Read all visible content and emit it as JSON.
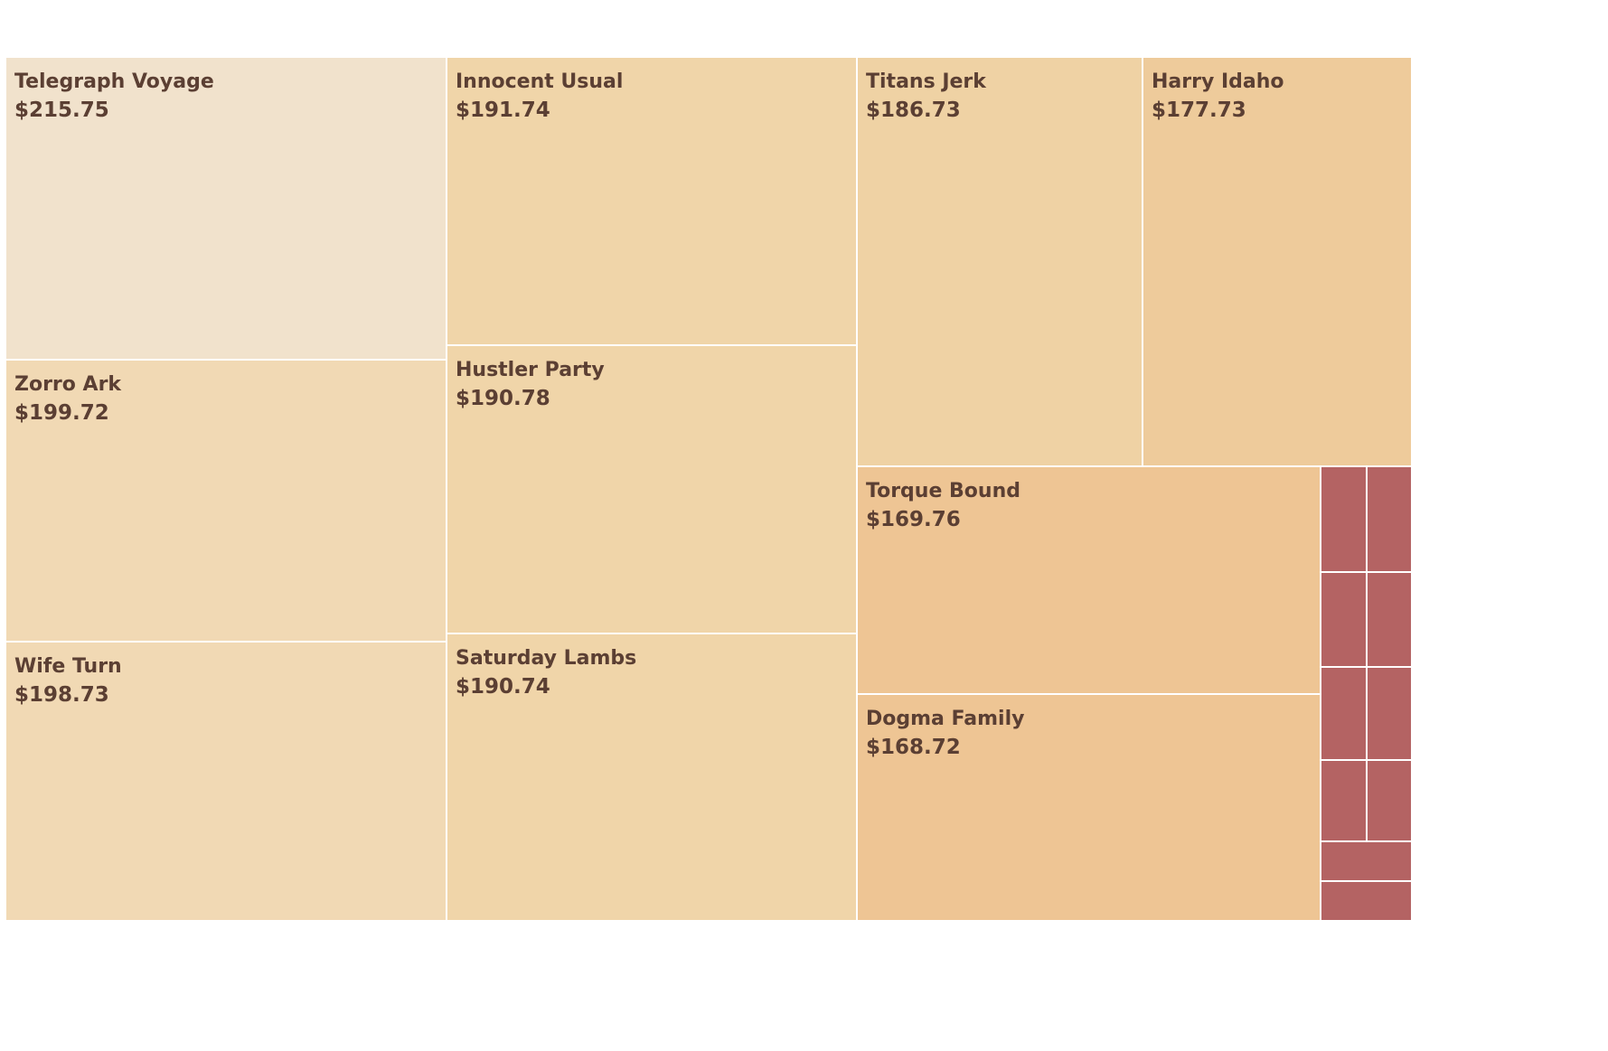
{
  "chart_data": {
    "type": "treemap",
    "title": "",
    "value_format": "currency",
    "items": [
      {
        "label": "Telegraph Voyage",
        "value_text": "$215.75",
        "value": 215.75,
        "color": "#f1e2cc"
      },
      {
        "label": "Zorro Ark",
        "value_text": "$199.72",
        "value": 199.72,
        "color": "#f1d9b4"
      },
      {
        "label": "Wife Turn",
        "value_text": "$198.73",
        "value": 198.73,
        "color": "#f1d9b4"
      },
      {
        "label": "Innocent Usual",
        "value_text": "$191.74",
        "value": 191.74,
        "color": "#f0d5a9"
      },
      {
        "label": "Hustler Party",
        "value_text": "$190.78",
        "value": 190.78,
        "color": "#f0d5a9"
      },
      {
        "label": "Saturday Lambs",
        "value_text": "$190.74",
        "value": 190.74,
        "color": "#f0d5a9"
      },
      {
        "label": "Titans Jerk",
        "value_text": "$186.73",
        "value": 186.73,
        "color": "#efd2a4"
      },
      {
        "label": "Harry Idaho",
        "value_text": "$177.73",
        "value": 177.73,
        "color": "#eecb9b"
      },
      {
        "label": "Torque Bound",
        "value_text": "$169.76",
        "value": 169.76,
        "color": "#eec594"
      },
      {
        "label": "Dogma Family",
        "value_text": "$168.72",
        "value": 168.72,
        "color": "#eec594"
      },
      {
        "label": "",
        "value_text": "",
        "value": 21.1,
        "color": "#b46363"
      },
      {
        "label": "",
        "value_text": "",
        "value": 21.1,
        "color": "#b46363"
      },
      {
        "label": "",
        "value_text": "",
        "value": 18.9,
        "color": "#b46363"
      },
      {
        "label": "",
        "value_text": "",
        "value": 18.9,
        "color": "#b46363"
      },
      {
        "label": "",
        "value_text": "",
        "value": 18.5,
        "color": "#b46363"
      },
      {
        "label": "",
        "value_text": "",
        "value": 18.5,
        "color": "#b46363"
      },
      {
        "label": "",
        "value_text": "",
        "value": 16.1,
        "color": "#b46363"
      },
      {
        "label": "",
        "value_text": "",
        "value": 16.1,
        "color": "#b46363"
      },
      {
        "label": "",
        "value_text": "",
        "value": 15.7,
        "color": "#b46363"
      },
      {
        "label": "",
        "value_text": "",
        "value": 15.4,
        "color": "#b46363"
      }
    ]
  }
}
